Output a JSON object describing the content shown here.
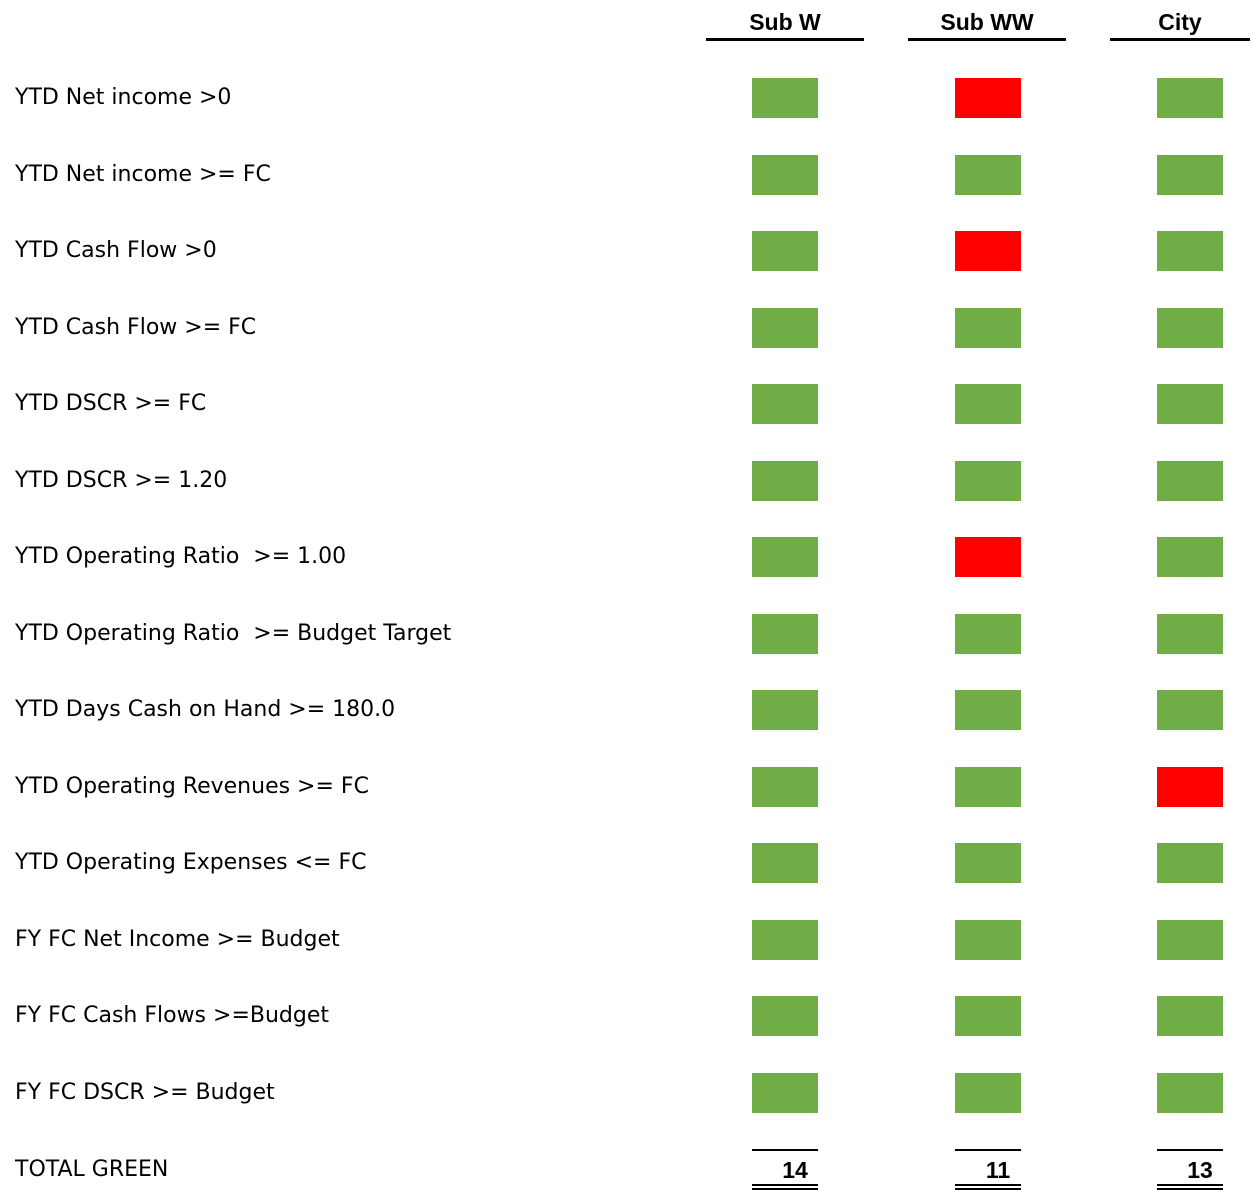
{
  "table": {
    "columns": [
      "Sub W",
      "Sub WW",
      "City"
    ],
    "colors": {
      "pass": "#70ad47",
      "fail": "#ff0000"
    },
    "rows": [
      {
        "label": "YTD Net income >0",
        "cells": [
          "#70ad47",
          "#ff0000",
          "#70ad47"
        ]
      },
      {
        "label": "YTD Net income >= FC",
        "cells": [
          "#70ad47",
          "#70ad47",
          "#70ad47"
        ]
      },
      {
        "label": "YTD Cash Flow >0",
        "cells": [
          "#70ad47",
          "#ff0000",
          "#70ad47"
        ]
      },
      {
        "label": "YTD Cash Flow >= FC",
        "cells": [
          "#70ad47",
          "#70ad47",
          "#70ad47"
        ]
      },
      {
        "label": "YTD DSCR >= FC",
        "cells": [
          "#70ad47",
          "#70ad47",
          "#70ad47"
        ]
      },
      {
        "label": "YTD DSCR >= 1.20",
        "cells": [
          "#70ad47",
          "#70ad47",
          "#70ad47"
        ]
      },
      {
        "label": "YTD Operating Ratio  >= 1.00",
        "cells": [
          "#70ad47",
          "#ff0000",
          "#70ad47"
        ]
      },
      {
        "label": "YTD Operating Ratio  >= Budget Target",
        "cells": [
          "#70ad47",
          "#70ad47",
          "#70ad47"
        ]
      },
      {
        "label": "YTD Days Cash on Hand >= 180.0",
        "cells": [
          "#70ad47",
          "#70ad47",
          "#70ad47"
        ]
      },
      {
        "label": "YTD Operating Revenues >= FC",
        "cells": [
          "#70ad47",
          "#70ad47",
          "#ff0000"
        ]
      },
      {
        "label": "YTD Operating Expenses <= FC",
        "cells": [
          "#70ad47",
          "#70ad47",
          "#70ad47"
        ]
      },
      {
        "label": "FY FC Net Income >= Budget",
        "cells": [
          "#70ad47",
          "#70ad47",
          "#70ad47"
        ]
      },
      {
        "label": "FY FC Cash Flows >=Budget",
        "cells": [
          "#70ad47",
          "#70ad47",
          "#70ad47"
        ]
      },
      {
        "label": "FY FC DSCR >= Budget",
        "cells": [
          "#70ad47",
          "#70ad47",
          "#70ad47"
        ]
      }
    ],
    "total": {
      "label": "TOTAL GREEN",
      "values": [
        14,
        11,
        13
      ]
    }
  }
}
